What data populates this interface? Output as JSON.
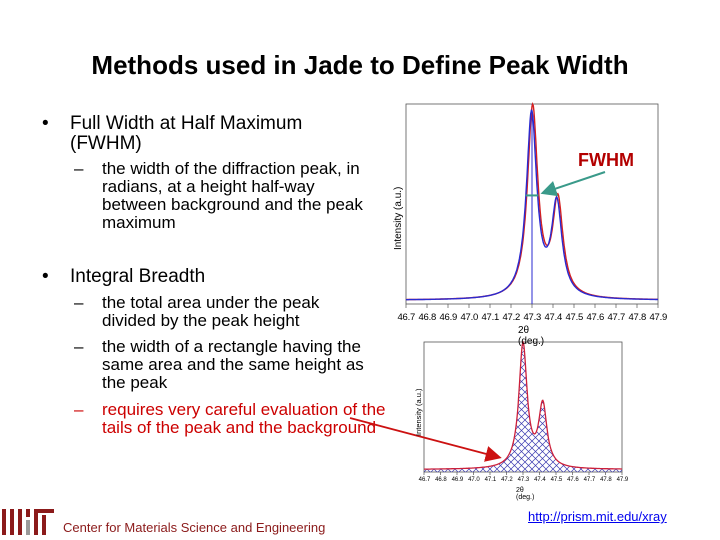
{
  "slide": {
    "title": "Methods used in Jade to Define Peak Width",
    "bullets": [
      {
        "text": "Full Width at Half Maximum (FWHM)",
        "subs": [
          {
            "text": "the width of the diffraction peak, in radians, at a height half-way between background and the peak maximum",
            "highlight": false
          }
        ]
      },
      {
        "text": "Integral Breadth",
        "subs": [
          {
            "text": "the total area under the peak divided by the peak height",
            "highlight": false
          },
          {
            "text": "the width of a rectangle having the same area and the same height as the peak",
            "highlight": false
          },
          {
            "text": "requires very careful evaluation of the tails of the peak and the background",
            "highlight": true
          }
        ]
      }
    ],
    "bullet_symbol": "•",
    "dash_symbol": "–",
    "footer": "Center for Materials Science and Engineering",
    "url": "http://prism.mit.edu/xray"
  },
  "chart_data": [
    {
      "type": "line",
      "annotation": "FWHM",
      "ylabel": "Intensity (a.u.)",
      "xlabel": "2θ (deg.)",
      "tick_labels": [
        "46.7",
        "46.8",
        "46.9",
        "47.0",
        "47.1",
        "47.2",
        "47.3",
        "47.4",
        "47.5",
        "47.6",
        "47.7",
        "47.8",
        "47.9"
      ],
      "xlim": [
        46.7,
        47.9
      ],
      "ylim": [
        0,
        1.05
      ],
      "grid": false,
      "series_colors": [
        "#d42020",
        "#2a2ad0"
      ],
      "peaks": [
        {
          "center": 47.3,
          "height": 1.0,
          "hwhm": 0.03
        },
        {
          "center": 47.42,
          "height": 0.5,
          "hwhm": 0.03
        }
      ],
      "half_max_marker_x": 47.3,
      "baseline": 0.02
    },
    {
      "type": "area",
      "ylabel": "Intensity (a.u.)",
      "xlabel": "2θ (deg.)",
      "tick_labels": [
        "46.7",
        "46.8",
        "46.9",
        "47.0",
        "47.1",
        "47.2",
        "47.3",
        "47.4",
        "47.5",
        "47.6",
        "47.7",
        "47.8",
        "47.9"
      ],
      "xlim": [
        46.7,
        47.9
      ],
      "ylim": [
        0,
        1.05
      ],
      "grid": false,
      "fill_pattern": "crosshatch",
      "line_color": "#cc1f3a",
      "peaks": [
        {
          "center": 47.3,
          "height": 1.0,
          "hwhm": 0.03
        },
        {
          "center": 47.42,
          "height": 0.5,
          "hwhm": 0.03
        }
      ],
      "baseline": 0.02
    }
  ],
  "colors": {
    "annotation": "#b30000",
    "arrow_green": "#3a9a8a",
    "arrow_red": "#cc1111",
    "logo": "#8b1a1a"
  }
}
